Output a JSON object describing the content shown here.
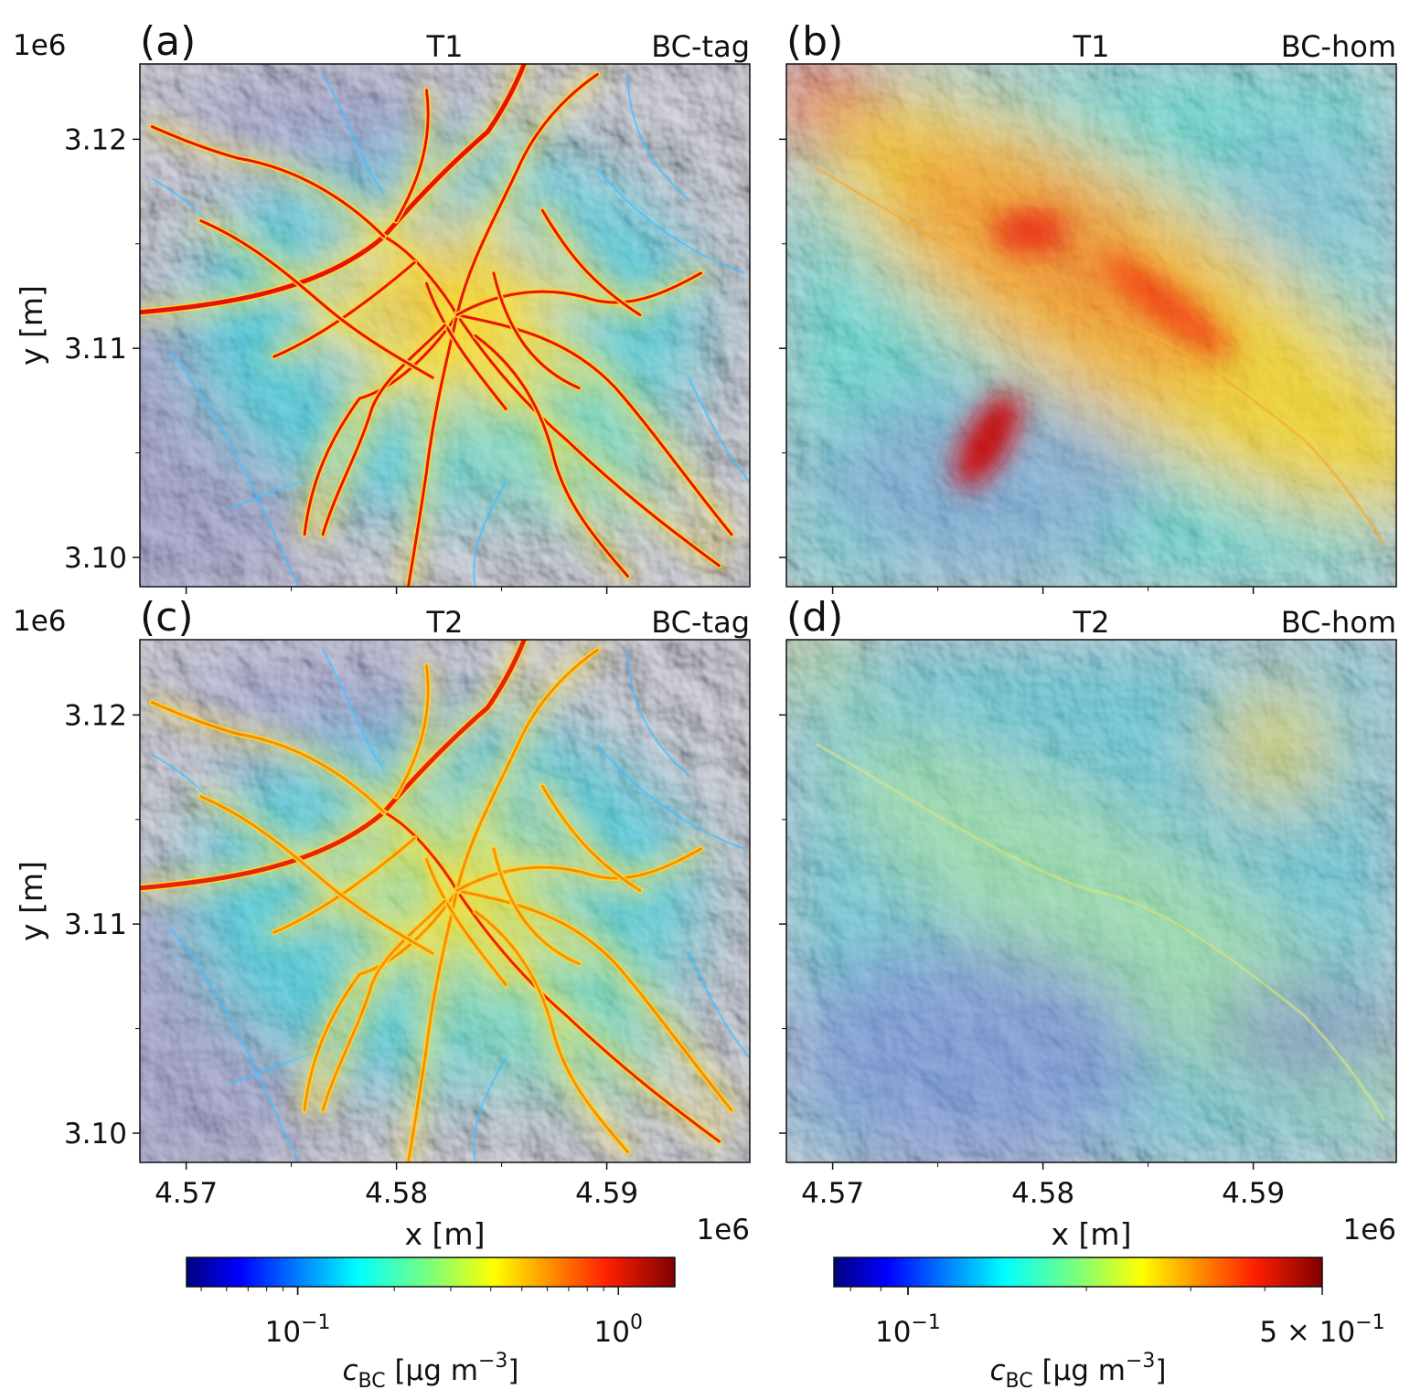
{
  "panels": [
    {
      "id": "a",
      "letter": "(a)",
      "period": "T1",
      "scenario": "BC-tag",
      "style": "tag",
      "intensity": 1.0
    },
    {
      "id": "b",
      "letter": "(b)",
      "period": "T1",
      "scenario": "BC-hom",
      "style": "hom",
      "intensity": 1.0
    },
    {
      "id": "c",
      "letter": "(c)",
      "period": "T2",
      "scenario": "BC-tag",
      "style": "tag",
      "intensity": 0.55
    },
    {
      "id": "d",
      "letter": "(d)",
      "period": "T2",
      "scenario": "BC-hom",
      "style": "hom",
      "intensity": 0.35
    }
  ],
  "axes": {
    "xlabel": "x [m]",
    "ylabel": "y [m]",
    "x_offset": "1e6",
    "y_offset": "1e6",
    "x_ticks": [
      "4.57",
      "4.58",
      "4.59"
    ],
    "y_ticks": [
      "3.12",
      "3.11",
      "3.10"
    ],
    "x_tick_values": [
      4.57,
      4.58,
      4.59
    ],
    "y_tick_values": [
      3.12,
      3.11,
      3.1
    ],
    "x_range": [
      4.5678,
      4.5968
    ],
    "y_range": [
      3.0986,
      3.1236
    ]
  },
  "colorbars": {
    "tag": {
      "scale": "log",
      "range": [
        0.045,
        1.5
      ],
      "ticks": [
        {
          "base": "10",
          "exp": "−1",
          "value": 0.1
        },
        {
          "base": "10",
          "exp": "0",
          "value": 1.0
        }
      ],
      "label_main": "c",
      "label_sub": "BC",
      "label_unit": "[μg m",
      "label_exp": "−3",
      "label_close": "]"
    },
    "hom": {
      "scale": "log",
      "range": [
        0.075,
        0.5
      ],
      "ticks": [
        {
          "base": "10",
          "exp": "−1",
          "value": 0.1
        },
        {
          "base": "5 × 10",
          "exp": "−1",
          "value": 0.5
        }
      ],
      "label_main": "c",
      "label_sub": "BC",
      "label_unit": "[μg m",
      "label_exp": "−3",
      "label_close": "]"
    }
  },
  "colormap": "jet"
}
